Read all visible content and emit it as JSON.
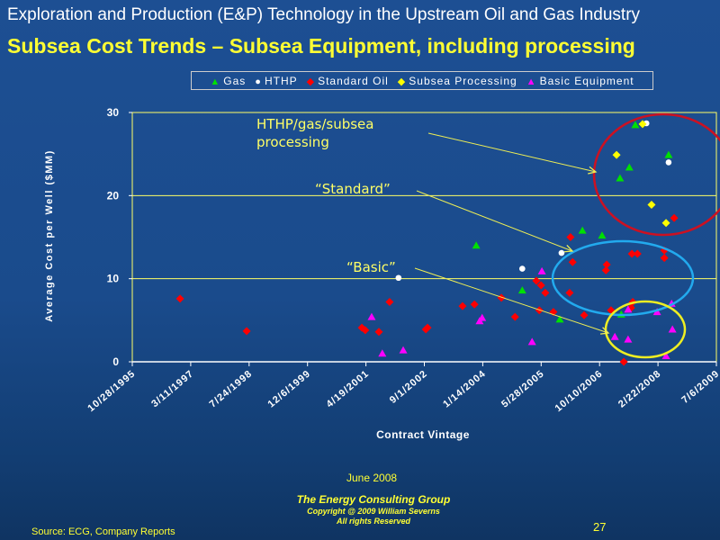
{
  "header": {
    "title": "Exploration and Production (E&P) Technology in the Upstream Oil and Gas Industry",
    "subtitle": "Subsea Cost Trends – Subsea Equipment, including processing"
  },
  "chart_data": {
    "type": "scatter",
    "xlabel": "Contract Vintage",
    "ylabel": "Average Cost per Well ($MM)",
    "xlim": [
      1995.82,
      2009.51
    ],
    "ylim": [
      0,
      30
    ],
    "yticks": [
      0,
      10,
      20,
      30
    ],
    "xtick_labels": [
      "10/28/1995",
      "3/11/1997",
      "7/24/1998",
      "12/6/1999",
      "4/19/2001",
      "9/1/2002",
      "1/14/2004",
      "5/28/2005",
      "10/10/2006",
      "2/22/2008",
      "7/6/2009"
    ],
    "grid": true,
    "legend_position": "top",
    "series": [
      {
        "name": "Gas",
        "marker": "triangle",
        "color": "#00e000",
        "points": [
          [
            2003.88,
            14.0
          ],
          [
            2004.96,
            8.6
          ],
          [
            2006.37,
            15.8
          ],
          [
            2006.83,
            15.2
          ],
          [
            2005.84,
            5.1
          ],
          [
            2007.28,
            5.7
          ],
          [
            2007.61,
            28.5
          ],
          [
            2008.39,
            24.9
          ],
          [
            2007.47,
            23.4
          ],
          [
            2007.25,
            22.1
          ]
        ]
      },
      {
        "name": "HTHP",
        "marker": "circle",
        "color": "#ffffff",
        "points": [
          [
            2002.06,
            10.1
          ],
          [
            2004.96,
            11.2
          ],
          [
            2005.88,
            13.1
          ],
          [
            2007.87,
            28.7
          ],
          [
            2008.39,
            24.0
          ]
        ]
      },
      {
        "name": "Standard Oil",
        "marker": "diamond",
        "color": "#ff0000",
        "points": [
          [
            1996.94,
            7.6
          ],
          [
            1998.5,
            3.7
          ],
          [
            2001.2,
            4.1
          ],
          [
            2001.28,
            3.8
          ],
          [
            2001.6,
            3.6
          ],
          [
            2001.85,
            7.2
          ],
          [
            2002.7,
            3.9
          ],
          [
            2002.74,
            4.1
          ],
          [
            2003.56,
            6.7
          ],
          [
            2003.84,
            6.9
          ],
          [
            2004.47,
            7.7
          ],
          [
            2004.79,
            5.4
          ],
          [
            2005.29,
            9.75
          ],
          [
            2005.4,
            9.2
          ],
          [
            2005.5,
            8.3
          ],
          [
            2005.36,
            6.2
          ],
          [
            2005.69,
            6.0
          ],
          [
            2006.07,
            8.3
          ],
          [
            2006.09,
            15.0
          ],
          [
            2006.14,
            12.0
          ],
          [
            2006.41,
            5.6
          ],
          [
            2006.94,
            11.7
          ],
          [
            2006.92,
            11.0
          ],
          [
            2007.04,
            6.2
          ],
          [
            2007.53,
            13.0
          ],
          [
            2007.66,
            13.0
          ],
          [
            2008.29,
            13.4
          ],
          [
            2008.29,
            12.5
          ],
          [
            2008.52,
            17.3
          ],
          [
            2007.55,
            7.2
          ],
          [
            2007.51,
            6.5
          ],
          [
            2007.34,
            0.0
          ]
        ]
      },
      {
        "name": "Subsea Processing",
        "marker": "diamond",
        "color": "#ffff00",
        "points": [
          [
            2007.78,
            28.6
          ],
          [
            2007.17,
            24.9
          ],
          [
            2007.99,
            18.9
          ],
          [
            2008.33,
            16.7
          ]
        ]
      },
      {
        "name": "Basic Equipment",
        "marker": "triangle",
        "color": "#ff00ff",
        "points": [
          [
            2001.43,
            5.4
          ],
          [
            2001.68,
            1.0
          ],
          [
            2002.17,
            1.4
          ],
          [
            2003.96,
            4.9
          ],
          [
            2004.02,
            5.3
          ],
          [
            2005.19,
            2.4
          ],
          [
            2005.42,
            10.9
          ],
          [
            2007.13,
            3.0
          ],
          [
            2007.44,
            2.7
          ],
          [
            2007.44,
            6.3
          ],
          [
            2008.12,
            6.0
          ],
          [
            2008.48,
            3.9
          ],
          [
            2008.46,
            7.0
          ],
          [
            2008.33,
            0.7
          ]
        ]
      }
    ],
    "annotations": [
      {
        "text_lines": [
          "HTHP/gas/subsea",
          "processing"
        ],
        "circle_color": "#cc1122"
      },
      {
        "text_lines": [
          "“Standard”"
        ],
        "circle_color": "#22aaee"
      },
      {
        "text_lines": [
          "“Basic”"
        ],
        "circle_color": "#eeee22"
      }
    ]
  },
  "footer": {
    "date": "June 2008",
    "company": "The Energy Consulting Group",
    "copyright": "Copyright @ 2009 William Severns",
    "rights": "All rights Reserved",
    "source": "Source:  ECG, Company Reports",
    "page_number": "27"
  }
}
